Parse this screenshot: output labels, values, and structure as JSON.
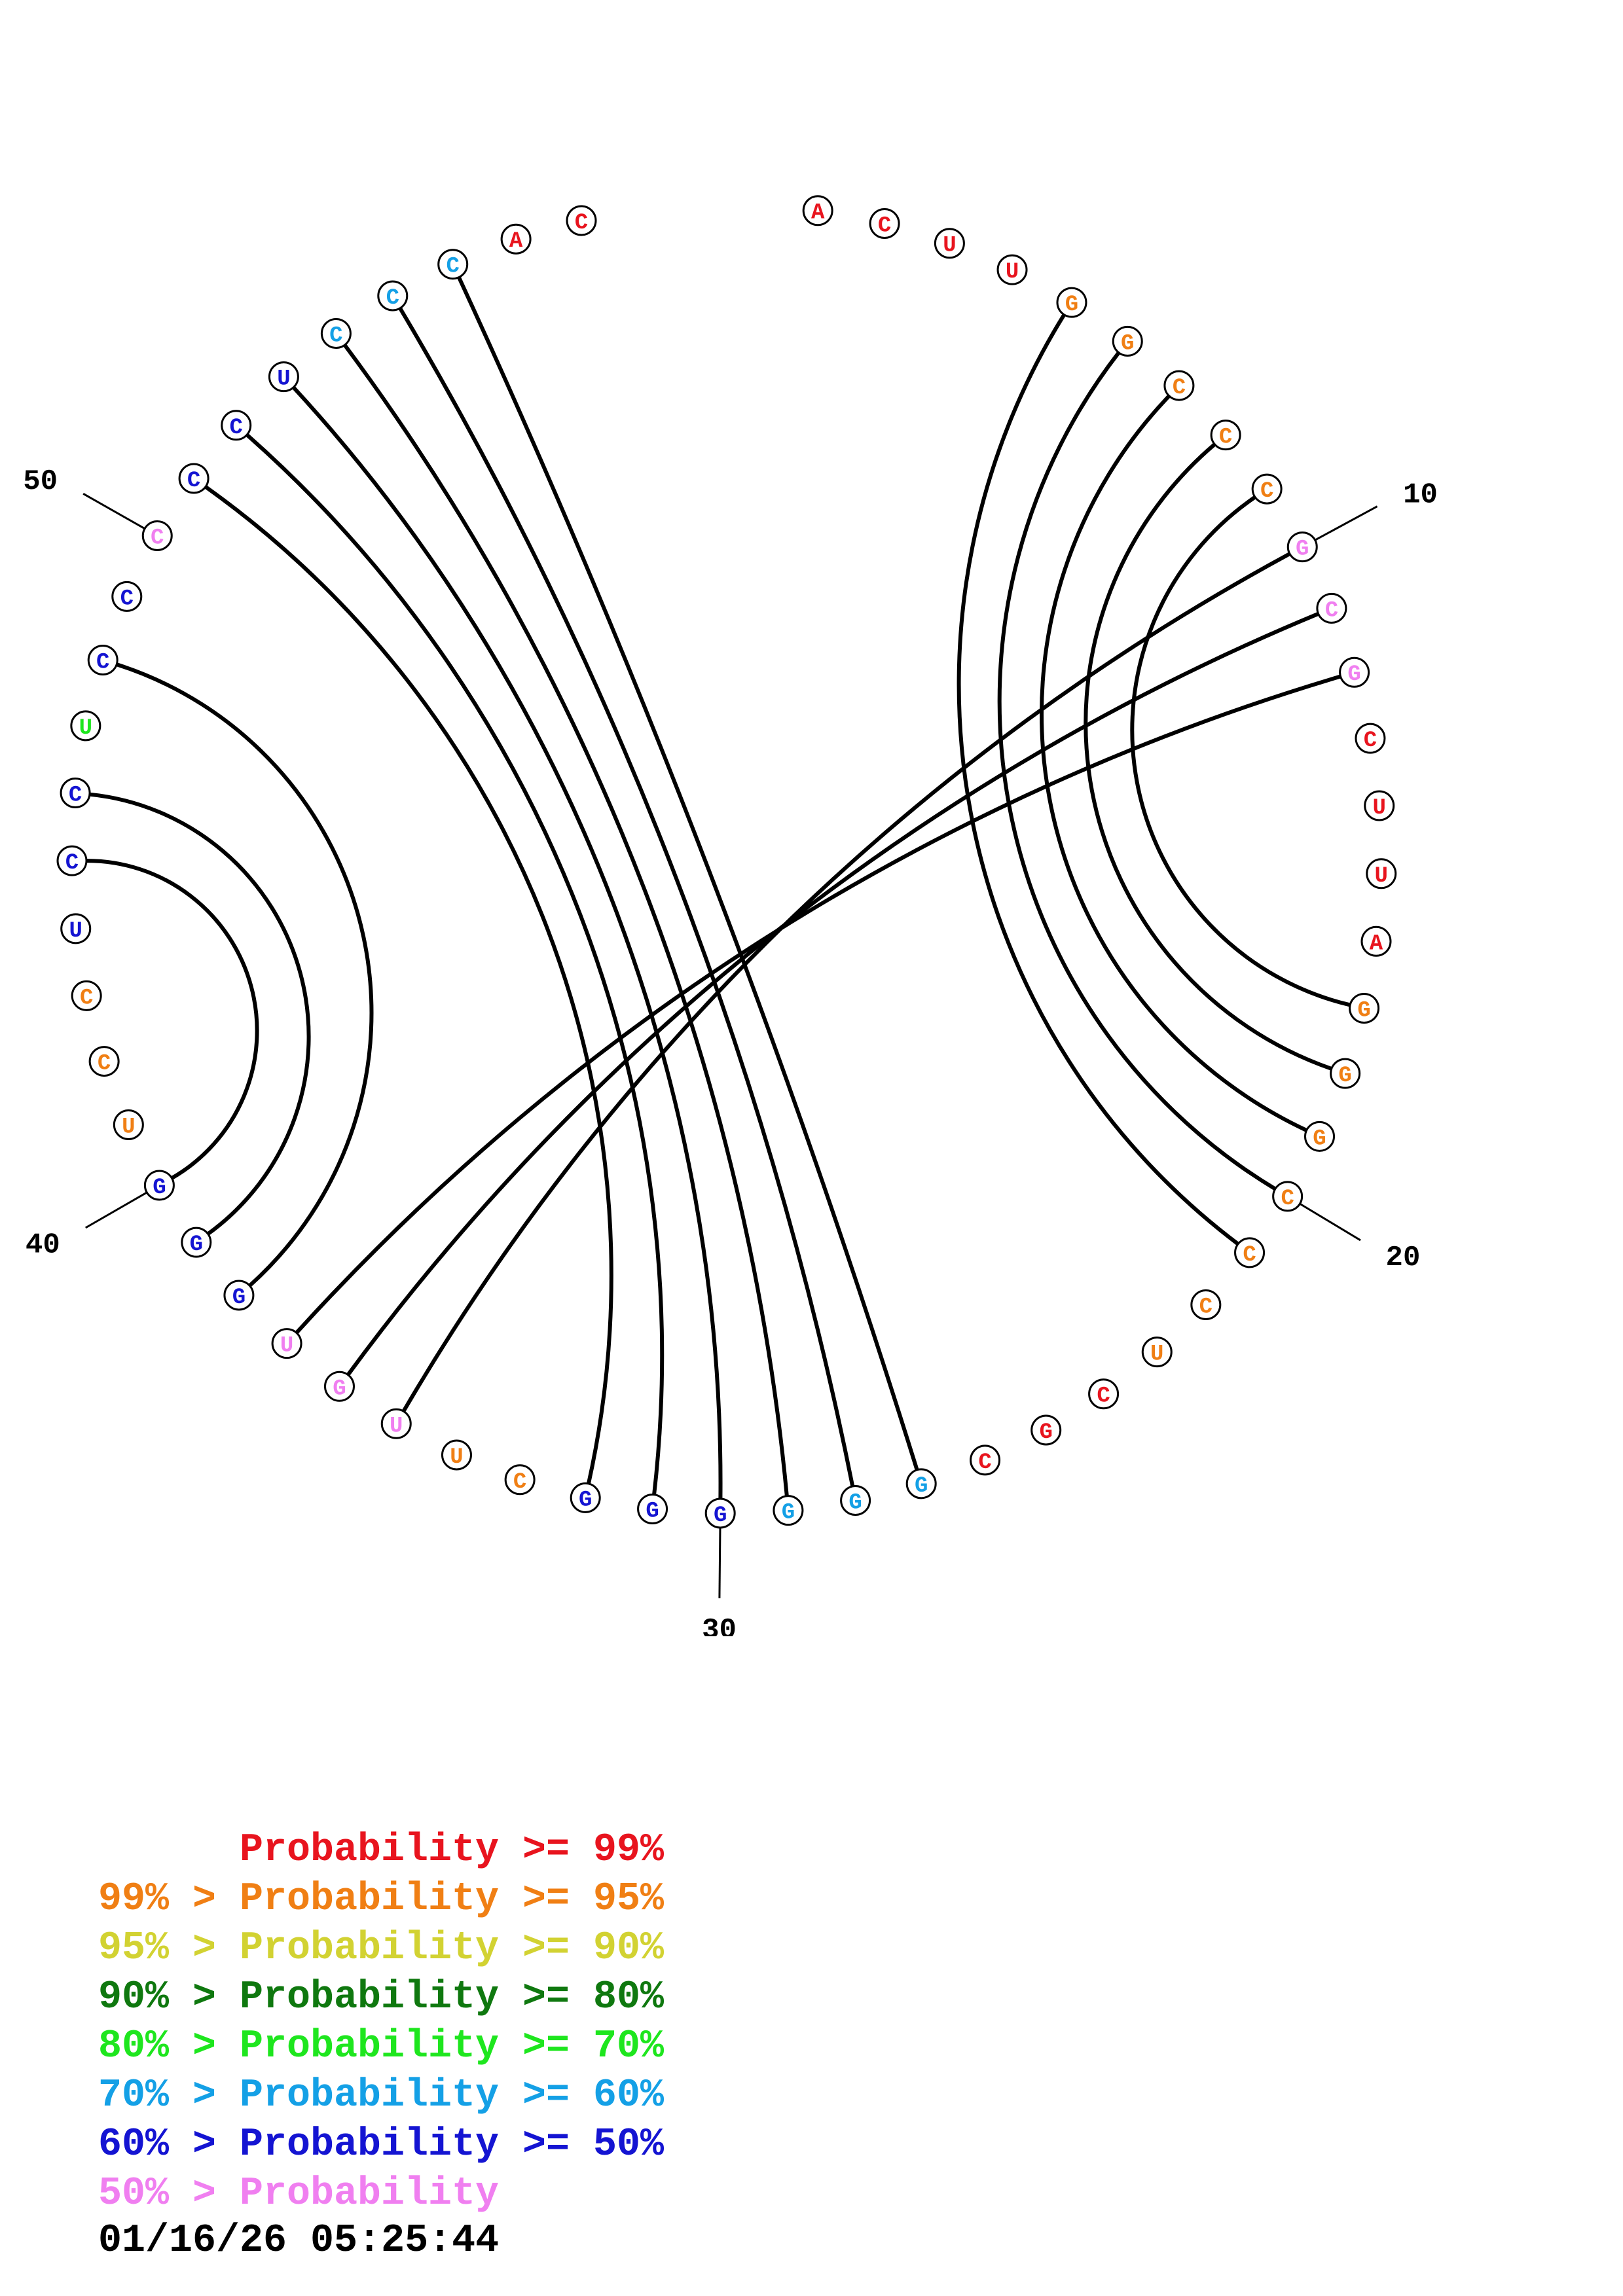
{
  "colors": {
    "p99": "#e8141e",
    "p95": "#f07f14",
    "p90": "#d2d232",
    "p80": "#0f780f",
    "p70": "#1ee61e",
    "p60": "#14a0e6",
    "p50": "#1414d2",
    "plow": "#f07ff0"
  },
  "sequence": [
    {
      "n": 1,
      "base": "A",
      "c": "p99"
    },
    {
      "n": 2,
      "base": "C",
      "c": "p99"
    },
    {
      "n": 3,
      "base": "U",
      "c": "p99"
    },
    {
      "n": 4,
      "base": "U",
      "c": "p99"
    },
    {
      "n": 5,
      "base": "G",
      "c": "p95"
    },
    {
      "n": 6,
      "base": "G",
      "c": "p95"
    },
    {
      "n": 7,
      "base": "C",
      "c": "p95"
    },
    {
      "n": 8,
      "base": "C",
      "c": "p95"
    },
    {
      "n": 9,
      "base": "C",
      "c": "p95"
    },
    {
      "n": 10,
      "base": "G",
      "c": "plow"
    },
    {
      "n": 11,
      "base": "C",
      "c": "plow"
    },
    {
      "n": 12,
      "base": "G",
      "c": "plow"
    },
    {
      "n": 13,
      "base": "C",
      "c": "p99"
    },
    {
      "n": 14,
      "base": "U",
      "c": "p99"
    },
    {
      "n": 15,
      "base": "U",
      "c": "p99"
    },
    {
      "n": 16,
      "base": "A",
      "c": "p99"
    },
    {
      "n": 17,
      "base": "G",
      "c": "p95"
    },
    {
      "n": 18,
      "base": "G",
      "c": "p95"
    },
    {
      "n": 19,
      "base": "G",
      "c": "p95"
    },
    {
      "n": 20,
      "base": "C",
      "c": "p95"
    },
    {
      "n": 21,
      "base": "C",
      "c": "p95"
    },
    {
      "n": 22,
      "base": "C",
      "c": "p95"
    },
    {
      "n": 23,
      "base": "U",
      "c": "p95"
    },
    {
      "n": 24,
      "base": "C",
      "c": "p99"
    },
    {
      "n": 25,
      "base": "G",
      "c": "p99"
    },
    {
      "n": 26,
      "base": "C",
      "c": "p99"
    },
    {
      "n": 27,
      "base": "G",
      "c": "p60"
    },
    {
      "n": 28,
      "base": "G",
      "c": "p60"
    },
    {
      "n": 29,
      "base": "G",
      "c": "p60"
    },
    {
      "n": 30,
      "base": "G",
      "c": "p50"
    },
    {
      "n": 31,
      "base": "G",
      "c": "p50"
    },
    {
      "n": 32,
      "base": "G",
      "c": "p50"
    },
    {
      "n": 33,
      "base": "C",
      "c": "p95"
    },
    {
      "n": 34,
      "base": "U",
      "c": "p95"
    },
    {
      "n": 35,
      "base": "U",
      "c": "plow"
    },
    {
      "n": 36,
      "base": "G",
      "c": "plow"
    },
    {
      "n": 37,
      "base": "U",
      "c": "plow"
    },
    {
      "n": 38,
      "base": "G",
      "c": "p50"
    },
    {
      "n": 39,
      "base": "G",
      "c": "p50"
    },
    {
      "n": 40,
      "base": "G",
      "c": "p50"
    },
    {
      "n": 41,
      "base": "U",
      "c": "p95"
    },
    {
      "n": 42,
      "base": "C",
      "c": "p95"
    },
    {
      "n": 43,
      "base": "C",
      "c": "p95"
    },
    {
      "n": 44,
      "base": "U",
      "c": "p50"
    },
    {
      "n": 45,
      "base": "C",
      "c": "p50"
    },
    {
      "n": 46,
      "base": "C",
      "c": "p50"
    },
    {
      "n": 47,
      "base": "U",
      "c": "p70"
    },
    {
      "n": 48,
      "base": "C",
      "c": "p50"
    },
    {
      "n": 49,
      "base": "C",
      "c": "p50"
    },
    {
      "n": 50,
      "base": "C",
      "c": "plow"
    },
    {
      "n": 51,
      "base": "C",
      "c": "p50"
    },
    {
      "n": 52,
      "base": "C",
      "c": "p50"
    },
    {
      "n": 53,
      "base": "U",
      "c": "p50"
    },
    {
      "n": 54,
      "base": "C",
      "c": "p60"
    },
    {
      "n": 55,
      "base": "C",
      "c": "p60"
    },
    {
      "n": 56,
      "base": "C",
      "c": "p60"
    },
    {
      "n": 57,
      "base": "A",
      "c": "p99"
    },
    {
      "n": 58,
      "base": "C",
      "c": "p99"
    }
  ],
  "pairs": [
    [
      5,
      21
    ],
    [
      6,
      20
    ],
    [
      7,
      19
    ],
    [
      8,
      18
    ],
    [
      9,
      17
    ],
    [
      10,
      35
    ],
    [
      11,
      36
    ],
    [
      12,
      37
    ],
    [
      27,
      56
    ],
    [
      28,
      55
    ],
    [
      29,
      54
    ],
    [
      30,
      53
    ],
    [
      31,
      52
    ],
    [
      32,
      51
    ],
    [
      38,
      48
    ],
    [
      39,
      46
    ],
    [
      40,
      45
    ]
  ],
  "ticks": [
    {
      "n": 10,
      "label": "10"
    },
    {
      "n": 20,
      "label": "20"
    },
    {
      "n": 30,
      "label": "30"
    },
    {
      "n": 40,
      "label": "40"
    },
    {
      "n": 50,
      "label": "50"
    }
  ],
  "legend": [
    {
      "lower": "",
      "sep": "",
      "text": "Probability",
      "cmp": ">=",
      "upper": "99%",
      "c": "p99"
    },
    {
      "lower": "99%",
      "sep": ">",
      "text": "Probability",
      "cmp": ">=",
      "upper": "95%",
      "c": "p95"
    },
    {
      "lower": "95%",
      "sep": ">",
      "text": "Probability",
      "cmp": ">=",
      "upper": "90%",
      "c": "p90"
    },
    {
      "lower": "90%",
      "sep": ">",
      "text": "Probability",
      "cmp": ">=",
      "upper": "80%",
      "c": "p80"
    },
    {
      "lower": "80%",
      "sep": ">",
      "text": "Probability",
      "cmp": ">=",
      "upper": "70%",
      "c": "p70"
    },
    {
      "lower": "70%",
      "sep": ">",
      "text": "Probability",
      "cmp": ">=",
      "upper": "60%",
      "c": "p60"
    },
    {
      "lower": "60%",
      "sep": ">",
      "text": "Probability",
      "cmp": ">=",
      "upper": "50%",
      "c": "p50"
    },
    {
      "lower": "50%",
      "sep": ">",
      "text": "Probability",
      "cmp": "",
      "upper": "",
      "c": "plow"
    }
  ],
  "timestamp": "01/16/26 05:25:44"
}
